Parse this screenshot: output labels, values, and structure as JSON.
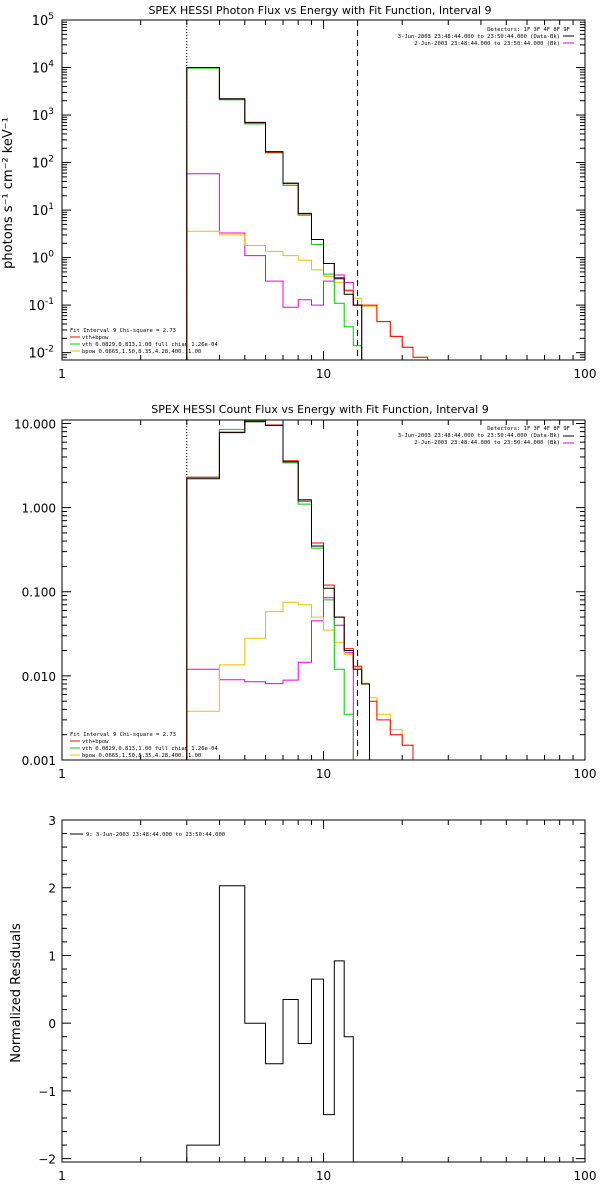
{
  "colors": {
    "total": "#000000",
    "vth_plus_bpow": "#ff0000",
    "vth": "#00c800",
    "bpow": "#e6c200",
    "bk": "#e600e6",
    "axis": "#000000"
  },
  "chart_data": [
    {
      "type": "line",
      "title": "SPEX HESSI Photon Flux vs Energy with Fit Function, Interval 9",
      "ylabel": "photons s⁻¹ cm⁻² keV⁻¹",
      "xlabel": "",
      "xscale": "log",
      "yscale": "log",
      "xlim": [
        1,
        100
      ],
      "ylim": [
        0.007,
        100000
      ],
      "x_ticks": [
        "1",
        "10",
        "100"
      ],
      "y_ticks": [
        {
          "value": 0.01,
          "base": "10",
          "exp": "-2"
        },
        {
          "value": 0.1,
          "base": "10",
          "exp": "-1"
        },
        {
          "value": 1,
          "base": "10",
          "exp": "0"
        },
        {
          "value": 10,
          "base": "10",
          "exp": "1"
        },
        {
          "value": 100,
          "base": "10",
          "exp": "2"
        },
        {
          "value": 1000,
          "base": "10",
          "exp": "3"
        },
        {
          "value": 10000,
          "base": "10",
          "exp": "4"
        },
        {
          "value": 100000,
          "base": "10",
          "exp": "5"
        }
      ],
      "vlines": [
        {
          "x": 3.0,
          "style": "dotted"
        },
        {
          "x": 13.5,
          "style": "dashed"
        }
      ],
      "legend_top": {
        "detectors": "Detectors: 1F 3F 4F 8F 9F",
        "entries": [
          {
            "label": "3-Jun-2003 23:48:44.000 to 23:50:44.000 (Data-Bk)",
            "color_key": "total"
          },
          {
            "label": "2-Jun-2003 23:48:44.000 to 23:50:44.000 (Bk)",
            "color_key": "bk"
          }
        ]
      },
      "legend_bottom": {
        "header": "Fit Interval 9   Chi-square = 2.73",
        "entries": [
          {
            "label": "vth+bpow",
            "color_key": "vth_plus_bpow"
          },
          {
            "label": "vth 0.0829,0.813,1.00  full chian 1.26e-04",
            "color_key": "vth"
          },
          {
            "label": "bpow 0.0665,1.50,8.35,4.28,400.,1.00",
            "color_key": "bpow"
          }
        ]
      },
      "bin_edges": [
        3.0,
        4.0,
        5.0,
        6.0,
        7.0,
        8.0,
        9.0,
        10.0,
        11.0,
        12.0,
        13.0,
        14.0,
        16.0,
        18.0,
        20.0,
        22.0,
        25.0,
        28.0
      ],
      "series": [
        {
          "name": "Data-Bk",
          "color_key": "total",
          "first_bin": 0,
          "values": [
            10000,
            2200,
            700,
            170,
            37,
            8.5,
            2.4,
            0.75,
            0.36,
            0.17,
            0.1
          ]
        },
        {
          "name": "vth+bpow",
          "color_key": "vth_plus_bpow",
          "first_bin": 0,
          "values": [
            10000,
            2150,
            690,
            165,
            36,
            8.3,
            2.4,
            0.75,
            0.38,
            0.2,
            0.1,
            0.1,
            0.045,
            0.022,
            0.013,
            0.008
          ]
        },
        {
          "name": "vth",
          "color_key": "vth",
          "first_bin": 0,
          "values": [
            9700,
            2100,
            650,
            160,
            33,
            7.8,
            1.9,
            0.45,
            0.11,
            0.035,
            0.014
          ]
        },
        {
          "name": "bpow",
          "color_key": "bpow",
          "first_bin": 0,
          "values": [
            3.6,
            3.0,
            1.8,
            1.35,
            1.1,
            0.88,
            0.55,
            0.4,
            0.3,
            0.21,
            0.14,
            0.095,
            0.045,
            0.022,
            0.013,
            0.008
          ]
        },
        {
          "name": "Bk",
          "color_key": "bk",
          "first_bin": 0,
          "values": [
            58,
            3.3,
            1.1,
            0.32,
            0.09,
            0.13,
            0.1,
            0.32,
            0.43,
            0.3,
            0.1
          ]
        }
      ]
    },
    {
      "type": "line",
      "title": "SPEX HESSI Count Flux vs Energy with Fit Function, Interval 9",
      "ylabel": "",
      "xlabel": "",
      "xscale": "log",
      "yscale": "log",
      "xlim": [
        1,
        100
      ],
      "ylim": [
        0.001,
        11
      ],
      "x_ticks": [
        "1",
        "10",
        "100"
      ],
      "y_ticks": [
        {
          "value": 0.001,
          "label": "0.001"
        },
        {
          "value": 0.01,
          "label": "0.010"
        },
        {
          "value": 0.1,
          "label": "0.100"
        },
        {
          "value": 1,
          "label": "1.000"
        },
        {
          "value": 10,
          "label": "10.000"
        }
      ],
      "vlines": [
        {
          "x": 3.0,
          "style": "dotted"
        },
        {
          "x": 13.5,
          "style": "dashed"
        }
      ],
      "legend_top": {
        "detectors": "Detectors: 1F 3F 4F 8F 9F",
        "entries": [
          {
            "label": "3-Jun-2003 23:48:44.000 to 23:50:44.000 (Data-Bk)",
            "color_key": "total"
          },
          {
            "label": "2-Jun-2003 23:48:44.000 to 23:50:44.000 (Bk)",
            "color_key": "bk"
          }
        ]
      },
      "legend_bottom": {
        "header": "Fit Interval 9   Chi-square = 2.73",
        "entries": [
          {
            "label": "vth+bpow",
            "color_key": "vth_plus_bpow"
          },
          {
            "label": "vth 0.0829,0.813,1.00  full chian 1.26e-04",
            "color_key": "vth"
          },
          {
            "label": "bpow 0.0665,1.50,8.35,4.28,400.,1.00",
            "color_key": "bpow"
          }
        ]
      },
      "bin_edges": [
        3.0,
        4.0,
        5.0,
        6.0,
        7.0,
        8.0,
        9.0,
        10.0,
        11.0,
        12.0,
        13.0,
        14.0,
        15.0,
        16.0,
        18.0,
        20.0,
        22.0,
        25.0,
        28.0
      ],
      "series": [
        {
          "name": "Data-Bk",
          "color_key": "total",
          "first_bin": 0,
          "values": [
            2.2,
            7.8,
            10.5,
            9.5,
            3.5,
            1.2,
            0.35,
            0.11,
            0.05,
            0.02,
            0.012,
            0.008
          ]
        },
        {
          "name": "vth+bpow",
          "color_key": "vth_plus_bpow",
          "first_bin": 0,
          "values": [
            2.3,
            7.9,
            10.6,
            9.6,
            3.6,
            1.25,
            0.38,
            0.12,
            0.05,
            0.021,
            0.013,
            0.008,
            0.005,
            0.003,
            0.002,
            0.0015,
            0.001
          ]
        },
        {
          "name": "vth",
          "color_key": "vth",
          "first_bin": 0,
          "values": [
            2.3,
            8.5,
            10.8,
            9.5,
            3.4,
            1.1,
            0.33,
            0.08,
            0.012,
            0.0035,
            0.0008
          ]
        },
        {
          "name": "bpow",
          "color_key": "bpow",
          "first_bin": 0,
          "values": [
            0.0038,
            0.0135,
            0.028,
            0.058,
            0.075,
            0.07,
            0.05,
            0.035,
            0.025,
            0.018,
            0.0125,
            0.0082,
            0.0055,
            0.0035,
            0.0023,
            0.0015,
            0.001
          ]
        },
        {
          "name": "Bk",
          "color_key": "bk",
          "first_bin": 0,
          "values": [
            0.012,
            0.009,
            0.0085,
            0.0081,
            0.0089,
            0.0145,
            0.045,
            0.085,
            0.04,
            0.019
          ]
        }
      ]
    },
    {
      "type": "line",
      "title": "",
      "ylabel": "Normalized Residuals",
      "xlabel": "",
      "xscale": "log",
      "yscale": "linear",
      "xlim": [
        1,
        100
      ],
      "ylim": [
        -2.05,
        3
      ],
      "x_ticks": [
        "1",
        "10",
        "100"
      ],
      "y_ticks": [
        {
          "value": -2,
          "label": "−2"
        },
        {
          "value": -1,
          "label": "−1"
        },
        {
          "value": 0,
          "label": "0"
        },
        {
          "value": 1,
          "label": "1"
        },
        {
          "value": 2,
          "label": "2"
        },
        {
          "value": 3,
          "label": "3"
        }
      ],
      "legend_top_left": {
        "entries": [
          {
            "label": "9:  3-Jun-2003 23:48:44.000 to 23:50:44.000",
            "color_key": "total"
          }
        ]
      },
      "bin_edges": [
        3.0,
        4.0,
        5.0,
        6.0,
        7.0,
        8.0,
        9.0,
        10.0,
        11.0,
        12.0,
        13.0,
        14.0
      ],
      "series": [
        {
          "name": "Residuals",
          "color_key": "total",
          "first_bin": 0,
          "values": [
            -1.8,
            2.03,
            0.0,
            -0.6,
            0.35,
            -0.3,
            0.65,
            -1.35,
            0.92,
            -0.2
          ]
        }
      ]
    }
  ]
}
